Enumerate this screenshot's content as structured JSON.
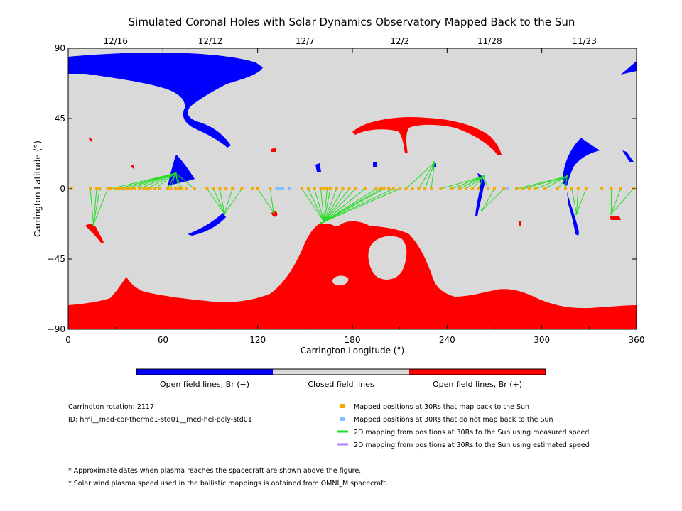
{
  "title": "Simulated Coronal Holes with Solar Dynamics Observatory Mapped Back to the Sun",
  "chart_data": {
    "type": "scatter",
    "xlabel": "Carrington Longitude (°)",
    "ylabel": "Carrington Latitude (°)",
    "xlim": [
      0,
      360
    ],
    "ylim": [
      -90,
      90
    ],
    "x_ticks": [
      "0",
      "60",
      "120",
      "180",
      "240",
      "300",
      "360"
    ],
    "y_ticks": [
      "90",
      "45",
      "0",
      "−45",
      "−90"
    ],
    "top_date_ticks": [
      {
        "label": "12/16",
        "lon": 30
      },
      {
        "label": "12/12",
        "lon": 90
      },
      {
        "label": "12/7",
        "lon": 150
      },
      {
        "label": "12/2",
        "lon": 210
      },
      {
        "label": "11/28",
        "lon": 267
      },
      {
        "label": "11/23",
        "lon": 327
      }
    ],
    "colors": {
      "open_negative": "#0000ff",
      "closed": "#d9d9d9",
      "open_positive": "#ff0000",
      "mapped_back": "#f5a800",
      "not_mapped_back": "#80c0ff",
      "measured_speed": "#22dd22",
      "estimated_speed": "#b080ff"
    },
    "series": [
      {
        "name": "Mapped positions at 30Rs that map back to the Sun",
        "points": [
          [
            2,
            0
          ],
          [
            14,
            0
          ],
          [
            18,
            0
          ],
          [
            20,
            0
          ],
          [
            25,
            0
          ],
          [
            27,
            0
          ],
          [
            30,
            0
          ],
          [
            32,
            0
          ],
          [
            34,
            0
          ],
          [
            36,
            0
          ],
          [
            38,
            0
          ],
          [
            40,
            0
          ],
          [
            42,
            0
          ],
          [
            45,
            0
          ],
          [
            48,
            0
          ],
          [
            50,
            0
          ],
          [
            52,
            0
          ],
          [
            55,
            0
          ],
          [
            58,
            0
          ],
          [
            63,
            0
          ],
          [
            65,
            0
          ],
          [
            68,
            0
          ],
          [
            70,
            0
          ],
          [
            72,
            0
          ],
          [
            75,
            0
          ],
          [
            80,
            0
          ],
          [
            88,
            0
          ],
          [
            92,
            0
          ],
          [
            96,
            0
          ],
          [
            100,
            0
          ],
          [
            104,
            0
          ],
          [
            110,
            0
          ],
          [
            117,
            0
          ],
          [
            120,
            0
          ],
          [
            128,
            0
          ],
          [
            148,
            0
          ],
          [
            152,
            0
          ],
          [
            156,
            0
          ],
          [
            160,
            0
          ],
          [
            162,
            0
          ],
          [
            164,
            0
          ],
          [
            166,
            0
          ],
          [
            170,
            0
          ],
          [
            174,
            0
          ],
          [
            178,
            0
          ],
          [
            182,
            0
          ],
          [
            188,
            0
          ],
          [
            195,
            0
          ],
          [
            198,
            0
          ],
          [
            200,
            0
          ],
          [
            203,
            0
          ],
          [
            206,
            0
          ],
          [
            210,
            0
          ],
          [
            214,
            0
          ],
          [
            218,
            0
          ],
          [
            222,
            0
          ],
          [
            226,
            0
          ],
          [
            230,
            0
          ],
          [
            236,
            0
          ],
          [
            243,
            0
          ],
          [
            248,
            0
          ],
          [
            252,
            0
          ],
          [
            256,
            0
          ],
          [
            260,
            0
          ],
          [
            266,
            0
          ],
          [
            270,
            0
          ],
          [
            276,
            0
          ],
          [
            284,
            0
          ],
          [
            288,
            0
          ],
          [
            292,
            0
          ],
          [
            296,
            0
          ],
          [
            302,
            0
          ],
          [
            310,
            0
          ],
          [
            315,
            0
          ],
          [
            319,
            0
          ],
          [
            323,
            0
          ],
          [
            328,
            0
          ],
          [
            338,
            0
          ],
          [
            344,
            0
          ],
          [
            350,
            0
          ],
          [
            358,
            0
          ]
        ]
      },
      {
        "name": "Mapped positions at 30Rs that do not map back to the Sun",
        "points": [
          [
            132,
            0
          ],
          [
            134,
            0
          ],
          [
            136,
            0
          ],
          [
            140,
            0
          ],
          [
            278,
            0
          ]
        ]
      },
      {
        "name": "2D mapping from positions at 30Rs to the Sun using measured speed",
        "segments": [
          [
            [
              14,
              0
            ],
            [
              16,
              -23
            ]
          ],
          [
            [
              18,
              0
            ],
            [
              16,
              -23
            ]
          ],
          [
            [
              20,
              0
            ],
            [
              16,
              -23
            ]
          ],
          [
            [
              25,
              0
            ],
            [
              16,
              -23
            ]
          ],
          [
            [
              27,
              0
            ],
            [
              68,
              10
            ]
          ],
          [
            [
              32,
              0
            ],
            [
              68,
              10
            ]
          ],
          [
            [
              36,
              0
            ],
            [
              68,
              10
            ]
          ],
          [
            [
              40,
              0
            ],
            [
              68,
              10
            ]
          ],
          [
            [
              45,
              0
            ],
            [
              68,
              10
            ]
          ],
          [
            [
              50,
              0
            ],
            [
              68,
              10
            ]
          ],
          [
            [
              55,
              0
            ],
            [
              68,
              10
            ]
          ],
          [
            [
              63,
              0
            ],
            [
              68,
              10
            ]
          ],
          [
            [
              65,
              0
            ],
            [
              68,
              10
            ]
          ],
          [
            [
              70,
              0
            ],
            [
              68,
              10
            ]
          ],
          [
            [
              72,
              0
            ],
            [
              68,
              10
            ]
          ],
          [
            [
              80,
              0
            ],
            [
              68,
              10
            ]
          ],
          [
            [
              88,
              0
            ],
            [
              99,
              -16
            ]
          ],
          [
            [
              92,
              0
            ],
            [
              99,
              -16
            ]
          ],
          [
            [
              96,
              0
            ],
            [
              99,
              -16
            ]
          ],
          [
            [
              104,
              0
            ],
            [
              99,
              -16
            ]
          ],
          [
            [
              110,
              0
            ],
            [
              99,
              -16
            ]
          ],
          [
            [
              128,
              0
            ],
            [
              130,
              -15
            ]
          ],
          [
            [
              120,
              0
            ],
            [
              130,
              -15
            ]
          ],
          [
            [
              148,
              0
            ],
            [
              162,
              -21
            ]
          ],
          [
            [
              152,
              0
            ],
            [
              162,
              -21
            ]
          ],
          [
            [
              156,
              0
            ],
            [
              162,
              -21
            ]
          ],
          [
            [
              160,
              0
            ],
            [
              162,
              -21
            ]
          ],
          [
            [
              164,
              0
            ],
            [
              162,
              -21
            ]
          ],
          [
            [
              166,
              0
            ],
            [
              162,
              -21
            ]
          ],
          [
            [
              170,
              0
            ],
            [
              162,
              -21
            ]
          ],
          [
            [
              174,
              0
            ],
            [
              162,
              -21
            ]
          ],
          [
            [
              178,
              0
            ],
            [
              162,
              -21
            ]
          ],
          [
            [
              182,
              0
            ],
            [
              162,
              -21
            ]
          ],
          [
            [
              188,
              0
            ],
            [
              162,
              -21
            ]
          ],
          [
            [
              195,
              0
            ],
            [
              162,
              -21
            ]
          ],
          [
            [
              198,
              0
            ],
            [
              162,
              -21
            ]
          ],
          [
            [
              200,
              0
            ],
            [
              160,
              -22
            ]
          ],
          [
            [
              206,
              0
            ],
            [
              160,
              -22
            ]
          ],
          [
            [
              210,
              0
            ],
            [
              160,
              -22
            ]
          ],
          [
            [
              214,
              0
            ],
            [
              232,
              17
            ]
          ],
          [
            [
              222,
              0
            ],
            [
              232,
              17
            ]
          ],
          [
            [
              226,
              0
            ],
            [
              232,
              17
            ]
          ],
          [
            [
              230,
              0
            ],
            [
              232,
              17
            ]
          ],
          [
            [
              236,
              0
            ],
            [
              263,
              8
            ]
          ],
          [
            [
              243,
              0
            ],
            [
              263,
              8
            ]
          ],
          [
            [
              248,
              0
            ],
            [
              263,
              8
            ]
          ],
          [
            [
              252,
              0
            ],
            [
              263,
              8
            ]
          ],
          [
            [
              256,
              0
            ],
            [
              263,
              8
            ]
          ],
          [
            [
              260,
              0
            ],
            [
              263,
              8
            ]
          ],
          [
            [
              266,
              0
            ],
            [
              263,
              8
            ]
          ],
          [
            [
              270,
              0
            ],
            [
              262,
              -14
            ]
          ],
          [
            [
              276,
              0
            ],
            [
              262,
              -14
            ]
          ],
          [
            [
              284,
              0
            ],
            [
              316,
              8
            ]
          ],
          [
            [
              288,
              0
            ],
            [
              316,
              8
            ]
          ],
          [
            [
              296,
              0
            ],
            [
              316,
              8
            ]
          ],
          [
            [
              302,
              0
            ],
            [
              316,
              8
            ]
          ],
          [
            [
              310,
              0
            ],
            [
              316,
              8
            ]
          ],
          [
            [
              315,
              0
            ],
            [
              316,
              8
            ]
          ],
          [
            [
              319,
              0
            ],
            [
              322,
              -16
            ]
          ],
          [
            [
              323,
              0
            ],
            [
              322,
              -16
            ]
          ],
          [
            [
              328,
              0
            ],
            [
              322,
              -16
            ]
          ],
          [
            [
              344,
              0
            ],
            [
              344,
              -16
            ]
          ],
          [
            [
              350,
              0
            ],
            [
              344,
              -16
            ]
          ],
          [
            [
              358,
              0
            ],
            [
              344,
              -16
            ]
          ]
        ]
      },
      {
        "name": "2D mapping from positions at 30Rs to the Sun using estimated speed",
        "segments": []
      }
    ]
  },
  "colorbar": {
    "labels": [
      "Open field lines, Br (−)",
      "Closed field lines",
      "Open field lines, Br (+)"
    ]
  },
  "info": {
    "rotation": "Carrington rotation: 2117",
    "id": "ID: hmi__med-cor-thermo1-std01__med-hel-poly-std01"
  },
  "footnotes": [
    "* Approximate dates when plasma reaches the spacecraft are shown above the figure.",
    "* Solar wind plasma speed used in the ballistic mappings is obtained from OMNI_M spacecraft."
  ]
}
